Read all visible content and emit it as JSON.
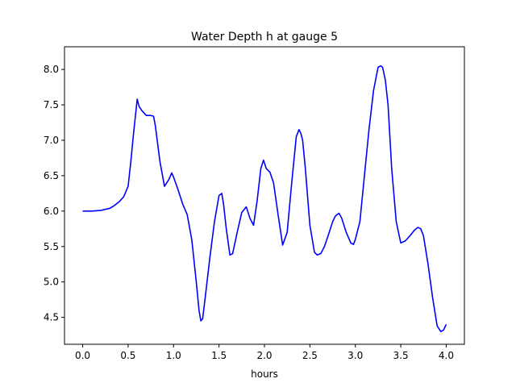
{
  "chart_data": {
    "type": "line",
    "title": "Water Depth h at gauge 5",
    "xlabel": "hours",
    "ylabel": "",
    "xlim": [
      -0.2,
      4.2
    ],
    "ylim": [
      4.12,
      8.32
    ],
    "xticks": [
      0.0,
      0.5,
      1.0,
      1.5,
      2.0,
      2.5,
      3.0,
      3.5,
      4.0
    ],
    "xtick_labels": [
      "0.0",
      "0.5",
      "1.0",
      "1.5",
      "2.0",
      "2.5",
      "3.0",
      "3.5",
      "4.0"
    ],
    "yticks": [
      4.5,
      5.0,
      5.5,
      6.0,
      6.5,
      7.0,
      7.5,
      8.0
    ],
    "ytick_labels": [
      "4.5",
      "5.0",
      "5.5",
      "6.0",
      "6.5",
      "7.0",
      "7.5",
      "8.0"
    ],
    "grid": false,
    "color": "#0000ff",
    "series": [
      {
        "x": [
          0.0,
          0.1,
          0.2,
          0.3,
          0.35,
          0.4,
          0.45,
          0.5,
          0.53,
          0.56,
          0.6,
          0.62,
          0.65,
          0.7,
          0.75,
          0.78,
          0.8,
          0.85,
          0.9,
          0.95,
          0.98,
          1.0,
          1.05,
          1.1,
          1.15,
          1.2,
          1.25,
          1.28,
          1.3,
          1.32,
          1.35,
          1.4,
          1.45,
          1.5,
          1.53,
          1.55,
          1.58,
          1.62,
          1.65,
          1.7,
          1.75,
          1.8,
          1.84,
          1.88,
          1.92,
          1.96,
          1.99,
          2.02,
          2.06,
          2.1,
          2.15,
          2.2,
          2.25,
          2.3,
          2.35,
          2.38,
          2.4,
          2.42,
          2.45,
          2.5,
          2.55,
          2.58,
          2.62,
          2.66,
          2.7,
          2.75,
          2.78,
          2.82,
          2.85,
          2.9,
          2.95,
          2.98,
          3.0,
          3.05,
          3.1,
          3.15,
          3.2,
          3.25,
          3.28,
          3.3,
          3.33,
          3.36,
          3.4,
          3.45,
          3.5,
          3.55,
          3.6,
          3.65,
          3.69,
          3.72,
          3.75,
          3.8,
          3.85,
          3.9,
          3.94,
          3.97,
          4.0
        ],
        "y": [
          6.0,
          6.0,
          6.01,
          6.04,
          6.08,
          6.13,
          6.2,
          6.35,
          6.7,
          7.1,
          7.58,
          7.48,
          7.42,
          7.35,
          7.35,
          7.34,
          7.2,
          6.7,
          6.35,
          6.45,
          6.54,
          6.48,
          6.3,
          6.1,
          5.95,
          5.6,
          5.0,
          4.6,
          4.45,
          4.48,
          4.8,
          5.35,
          5.85,
          6.22,
          6.25,
          6.1,
          5.75,
          5.38,
          5.4,
          5.7,
          5.98,
          6.06,
          5.9,
          5.8,
          6.15,
          6.6,
          6.72,
          6.6,
          6.55,
          6.4,
          5.95,
          5.52,
          5.7,
          6.4,
          7.05,
          7.15,
          7.1,
          7.0,
          6.6,
          5.8,
          5.42,
          5.38,
          5.4,
          5.5,
          5.65,
          5.85,
          5.93,
          5.97,
          5.9,
          5.7,
          5.55,
          5.53,
          5.6,
          5.85,
          6.5,
          7.15,
          7.7,
          8.03,
          8.05,
          8.03,
          7.85,
          7.5,
          6.6,
          5.85,
          5.55,
          5.58,
          5.65,
          5.73,
          5.77,
          5.75,
          5.65,
          5.25,
          4.78,
          4.38,
          4.3,
          4.32,
          4.4
        ]
      }
    ]
  }
}
